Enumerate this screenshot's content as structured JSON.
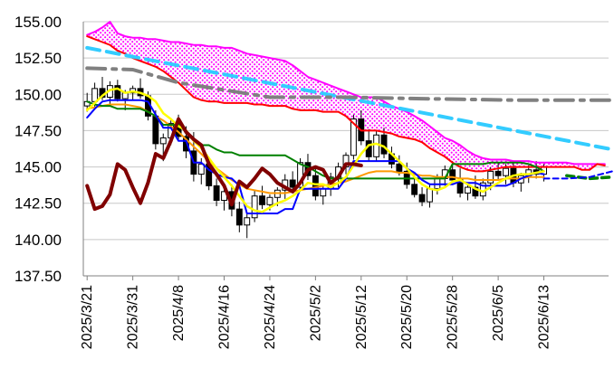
{
  "chart_data": {
    "type": "candlestick",
    "title": "",
    "xlabel": "",
    "ylabel": "",
    "ylim": [
      137.5,
      155.0
    ],
    "yticks": [
      "155.00",
      "152.50",
      "150.00",
      "147.50",
      "145.00",
      "142.50",
      "140.00",
      "137.50"
    ],
    "x_ticks": [
      {
        "label": "2025/3/21",
        "index": 0
      },
      {
        "label": "2025/3/31",
        "index": 6
      },
      {
        "label": "2025/4/8",
        "index": 12
      },
      {
        "label": "2025/4/16",
        "index": 18
      },
      {
        "label": "2025/4/24",
        "index": 24
      },
      {
        "label": "2025/5/2",
        "index": 30
      },
      {
        "label": "2025/5/12",
        "index": 36
      },
      {
        "label": "2025/5/20",
        "index": 42
      },
      {
        "label": "2025/5/28",
        "index": 48
      },
      {
        "label": "2025/6/5",
        "index": 54
      },
      {
        "label": "2025/6/13",
        "index": 60
      }
    ],
    "x_max_index": 69,
    "grid": "horizontal",
    "colors": {
      "cloud_fill": "#ff00ff",
      "span_a": "#ff00ff",
      "span_b": "#ff0000",
      "base_line": "#008000",
      "conversion_line": "#0000ff",
      "ma_short": "#ffff00",
      "ma_long": "#ff9900",
      "lagging_span": "#800000",
      "trend_long": "#808080",
      "trend_short": "#33ccff",
      "candle_up": "#ffffff",
      "candle_down": "#000000"
    },
    "candles": [
      [
        149.2,
        150.1,
        148.8,
        149.5
      ],
      [
        149.5,
        150.8,
        149.1,
        150.4
      ],
      [
        150.4,
        151.2,
        149.6,
        149.8
      ],
      [
        149.8,
        150.9,
        149.3,
        150.6
      ],
      [
        150.6,
        151.0,
        149.5,
        149.7
      ],
      [
        149.7,
        150.3,
        148.9,
        150.1
      ],
      [
        150.1,
        150.6,
        149.6,
        150.4
      ],
      [
        150.4,
        151.1,
        149.7,
        149.9
      ],
      [
        149.9,
        150.2,
        148.2,
        148.5
      ],
      [
        148.5,
        148.9,
        146.2,
        146.6
      ],
      [
        146.6,
        147.3,
        145.4,
        147.0
      ],
      [
        147.0,
        148.2,
        146.5,
        148.0
      ],
      [
        148.0,
        148.6,
        146.8,
        147.1
      ],
      [
        147.1,
        147.8,
        145.6,
        146.1
      ],
      [
        146.1,
        147.4,
        144.0,
        144.5
      ],
      [
        144.5,
        145.6,
        143.8,
        145.2
      ],
      [
        145.2,
        145.7,
        143.4,
        143.7
      ],
      [
        143.7,
        144.2,
        142.3,
        142.7
      ],
      [
        142.7,
        143.6,
        142.0,
        143.3
      ],
      [
        143.3,
        143.8,
        141.6,
        142.1
      ],
      [
        142.1,
        142.6,
        140.5,
        141.0
      ],
      [
        141.0,
        141.8,
        140.1,
        141.5
      ],
      [
        141.5,
        143.4,
        141.2,
        143.0
      ],
      [
        143.0,
        143.7,
        142.1,
        142.4
      ],
      [
        142.4,
        143.1,
        142.0,
        142.9
      ],
      [
        142.9,
        143.6,
        142.3,
        143.4
      ],
      [
        143.4,
        144.5,
        142.8,
        144.1
      ],
      [
        144.1,
        144.7,
        143.2,
        143.6
      ],
      [
        143.6,
        145.6,
        143.3,
        145.3
      ],
      [
        145.3,
        145.9,
        144.1,
        144.4
      ],
      [
        144.4,
        144.9,
        142.7,
        143.0
      ],
      [
        143.0,
        143.8,
        142.4,
        143.5
      ],
      [
        143.5,
        144.6,
        143.0,
        144.3
      ],
      [
        144.3,
        145.3,
        143.6,
        145.0
      ],
      [
        145.0,
        146.0,
        144.5,
        145.8
      ],
      [
        145.8,
        148.6,
        145.5,
        148.3
      ],
      [
        148.3,
        148.9,
        146.5,
        146.8
      ],
      [
        146.8,
        147.6,
        145.4,
        145.7
      ],
      [
        145.7,
        147.5,
        145.4,
        147.2
      ],
      [
        147.2,
        147.7,
        145.6,
        145.9
      ],
      [
        145.9,
        146.4,
        144.9,
        145.2
      ],
      [
        145.2,
        145.8,
        144.4,
        144.7
      ],
      [
        144.7,
        145.3,
        143.5,
        143.8
      ],
      [
        143.8,
        144.4,
        142.9,
        143.1
      ],
      [
        143.1,
        143.6,
        142.3,
        142.6
      ],
      [
        142.6,
        143.8,
        142.2,
        143.5
      ],
      [
        143.5,
        144.5,
        143.1,
        144.2
      ],
      [
        144.2,
        145.1,
        143.7,
        144.8
      ],
      [
        144.8,
        145.4,
        143.9,
        144.1
      ],
      [
        144.1,
        144.9,
        142.9,
        143.2
      ],
      [
        143.2,
        143.9,
        142.7,
        143.6
      ],
      [
        143.6,
        144.4,
        142.8,
        143.0
      ],
      [
        143.0,
        144.2,
        142.7,
        143.9
      ],
      [
        143.9,
        145.0,
        143.4,
        144.7
      ],
      [
        144.7,
        145.3,
        144.1,
        144.4
      ],
      [
        144.4,
        145.2,
        143.8,
        144.9
      ],
      [
        144.9,
        145.4,
        143.6,
        143.9
      ],
      [
        143.9,
        144.6,
        143.3,
        144.4
      ],
      [
        144.4,
        145.1,
        143.9,
        144.8
      ],
      [
        144.8,
        145.4,
        144.2,
        144.5
      ],
      [
        144.5,
        145.2,
        144.0,
        145.0
      ]
    ],
    "series": [
      {
        "key": "span_a",
        "values": [
          154.1,
          154.3,
          154.6,
          155.0,
          154.2,
          154.0,
          153.9,
          153.9,
          153.8,
          153.8,
          153.7,
          153.6,
          153.6,
          153.5,
          153.4,
          153.4,
          153.3,
          153.3,
          153.2,
          153.2,
          153.0,
          152.8,
          152.7,
          152.6,
          152.5,
          152.4,
          152.3,
          152.0,
          151.6,
          151.2,
          151.0,
          150.8,
          150.6,
          150.4,
          150.2,
          150.0,
          149.8,
          149.8,
          149.8,
          149.5,
          149.2,
          149.0,
          148.8,
          148.5,
          148.2,
          147.8,
          147.4,
          147.0,
          146.8,
          146.5,
          146.1,
          145.8,
          145.6,
          145.5,
          145.5,
          145.5,
          145.4,
          145.4,
          145.4,
          145.3,
          145.3,
          145.3,
          145.3,
          145.3,
          145.2,
          145.2,
          145.2,
          145.2,
          145.2
        ]
      },
      {
        "key": "span_b",
        "values": [
          154.0,
          153.8,
          153.6,
          153.4,
          153.0,
          152.8,
          152.5,
          152.3,
          152.1,
          151.9,
          151.6,
          151.2,
          150.8,
          150.3,
          149.8,
          149.6,
          149.5,
          149.5,
          149.4,
          149.4,
          149.4,
          149.4,
          149.3,
          149.3,
          149.2,
          149.2,
          149.2,
          149.0,
          148.9,
          148.9,
          148.9,
          148.8,
          148.8,
          148.8,
          148.5,
          148.0,
          147.5,
          147.5,
          147.5,
          147.4,
          147.3,
          147.1,
          147.0,
          146.9,
          146.7,
          146.3,
          146.0,
          145.7,
          145.3,
          145.0,
          144.8,
          144.7,
          144.7,
          144.8,
          144.9,
          145.0,
          145.0,
          145.0,
          145.0,
          145.0,
          145.0,
          145.0,
          145.0,
          145.0,
          145.0,
          144.8,
          144.8,
          145.2,
          145.1
        ]
      },
      {
        "key": "base_line",
        "values": [
          149.5,
          149.3,
          149.2,
          149.2,
          149.0,
          149.0,
          149.0,
          149.0,
          148.8,
          148.5,
          147.9,
          147.9,
          147.9,
          147.4,
          146.9,
          146.5,
          146.5,
          146.2,
          146.0,
          146.0,
          145.8,
          145.8,
          145.8,
          145.8,
          145.8,
          145.8,
          145.8,
          145.5,
          145.2,
          145.0,
          144.7,
          144.4,
          144.2,
          144.2,
          144.2,
          144.2,
          144.2,
          144.2,
          144.2,
          144.2,
          144.2,
          144.2,
          144.2,
          144.2,
          144.2,
          144.2,
          144.2,
          144.2,
          145.2,
          145.2,
          145.2,
          145.2,
          145.2,
          145.3,
          145.3,
          145.3,
          145.3,
          145.3,
          145.2,
          145.0,
          144.7
        ]
      },
      {
        "key": "conversion_line",
        "values": [
          148.4,
          149.0,
          149.5,
          149.6,
          149.6,
          149.6,
          149.6,
          149.6,
          149.5,
          148.6,
          147.7,
          147.7,
          146.8,
          146.8,
          145.3,
          145.3,
          144.8,
          144.5,
          144.3,
          144.2,
          143.7,
          141.8,
          141.8,
          141.8,
          141.8,
          141.8,
          142.1,
          142.1,
          143.5,
          143.5,
          143.5,
          143.5,
          143.5,
          143.5,
          144.2,
          145.4,
          145.4,
          145.4,
          145.4,
          145.4,
          145.4,
          145.4,
          144.9,
          144.6,
          144.1,
          143.8,
          143.8,
          143.8,
          143.8,
          144.0,
          143.9,
          143.9,
          143.7,
          143.7,
          143.7,
          143.7,
          143.9,
          144.2,
          144.4,
          144.6,
          144.5
        ]
      },
      {
        "key": "ma_short",
        "values": [
          148.9,
          149.4,
          149.9,
          150.3,
          150.4,
          150.1,
          150.2,
          150.1,
          149.9,
          149.5,
          148.7,
          148.3,
          147.8,
          147.5,
          146.8,
          146.3,
          145.6,
          144.9,
          144.3,
          143.7,
          143.0,
          142.3,
          142.0,
          141.9,
          142.2,
          142.5,
          142.7,
          143.0,
          143.4,
          143.9,
          143.8,
          143.8,
          143.6,
          143.9,
          144.3,
          145.1,
          145.9,
          146.5,
          146.6,
          146.4,
          145.9,
          145.4,
          144.9,
          144.3,
          143.8,
          143.5,
          143.4,
          143.6,
          144.0,
          144.1,
          143.8,
          143.5,
          143.3,
          143.6,
          143.9,
          144.2,
          144.4,
          144.5,
          144.5,
          144.6,
          144.7
        ]
      },
      {
        "key": "ma_long",
        "values": [
          149.0,
          149.1,
          149.2,
          149.3,
          149.3,
          149.3,
          149.2,
          149.1,
          148.8,
          148.5,
          148.2,
          147.8,
          147.4,
          146.9,
          146.4,
          145.9,
          145.4,
          144.9,
          144.5,
          144.1,
          143.8,
          143.5,
          143.4,
          143.3,
          143.2,
          143.2,
          143.2,
          143.3,
          143.4,
          143.5,
          143.6,
          143.7,
          143.8,
          143.9,
          144.0,
          144.2,
          144.4,
          144.6,
          144.7,
          144.7,
          144.7,
          144.6,
          144.6,
          144.5,
          144.4,
          144.4,
          144.3,
          144.3,
          144.3,
          144.2,
          144.2,
          144.1,
          144.1,
          144.1,
          144.1,
          144.2,
          144.2,
          144.2,
          144.3,
          144.3,
          144.3
        ]
      },
      {
        "key": "lagging_span",
        "values": [
          143.7,
          142.1,
          142.3,
          143.1,
          145.2,
          144.8,
          143.6,
          142.5,
          143.9,
          145.9,
          145.6,
          146.8,
          148.3,
          147.4,
          146.9,
          146.5,
          145.2,
          144.5,
          143.7,
          142.4,
          144.0,
          143.6,
          144.2,
          144.9,
          144.5,
          143.9,
          143.6,
          143.3,
          143.9,
          144.8,
          145.0,
          144.8,
          143.9,
          144.3,
          145.2,
          145.2,
          145.1
        ]
      },
      {
        "key": "trend_short",
        "values": [
          [
            0,
            153.2
          ],
          [
            69,
            146.2
          ]
        ]
      },
      {
        "key": "trend_long",
        "values": [
          [
            0,
            151.8
          ],
          [
            6,
            151.7
          ],
          [
            12,
            150.8
          ],
          [
            24,
            149.8
          ],
          [
            34,
            149.8
          ],
          [
            44,
            149.7
          ],
          [
            56,
            149.6
          ],
          [
            69,
            149.6
          ]
        ]
      },
      {
        "key": "forward_green",
        "values": [
          [
            63,
            144.4
          ],
          [
            66,
            144.2
          ],
          [
            69,
            144.3
          ]
        ]
      },
      {
        "key": "forward_blue",
        "values": [
          [
            60,
            144.2
          ],
          [
            63,
            144.2
          ],
          [
            66,
            144.3
          ],
          [
            69,
            144.7
          ]
        ]
      }
    ]
  }
}
